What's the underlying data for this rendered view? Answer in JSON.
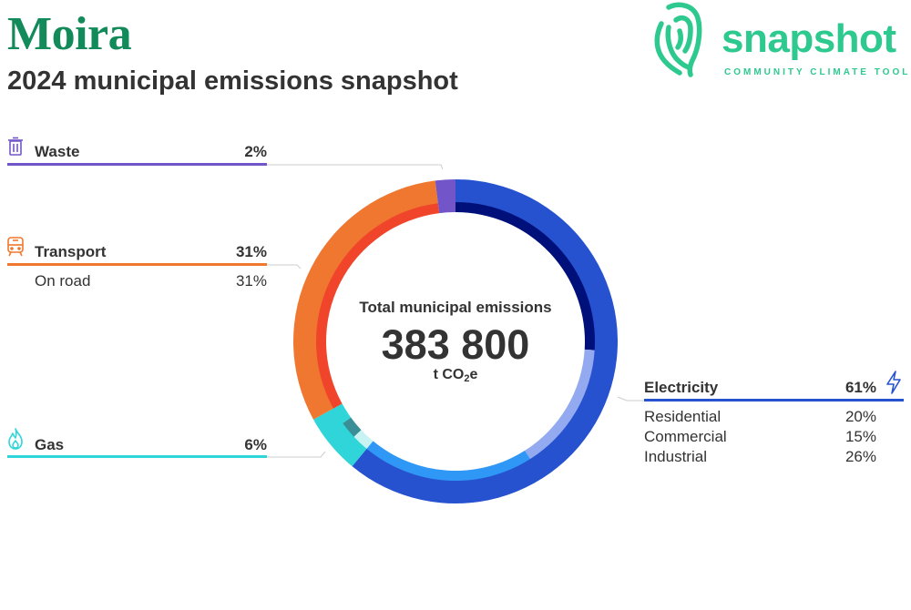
{
  "header": {
    "title": "Moira",
    "subtitle": "2024 municipal emissions snapshot"
  },
  "logo": {
    "word": "snapshot",
    "tagline": "COMMUNITY CLIMATE TOOL",
    "color": "#2dc98f"
  },
  "center": {
    "label": "Total municipal emissions",
    "value": "383 800",
    "unit_prefix": "t CO",
    "unit_subscript": "2",
    "unit_suffix": "e"
  },
  "colors": {
    "title": "#138a5a",
    "waste": "#7256c9",
    "transport": "#f0772f",
    "gas": "#2fd5d8",
    "electricity": "#2652d0"
  },
  "categories": {
    "waste": {
      "label": "Waste",
      "pct": "2%",
      "icon": "trash-can-icon"
    },
    "transport": {
      "label": "Transport",
      "pct": "31%",
      "icon": "train-icon",
      "subs": [
        {
          "label": "On road",
          "pct": "31%"
        }
      ]
    },
    "gas": {
      "label": "Gas",
      "pct": "6%",
      "icon": "flame-icon"
    },
    "electricity": {
      "label": "Electricity",
      "pct": "61%",
      "icon": "lightning-bolt-icon",
      "subs": [
        {
          "label": "Residential",
          "pct": "20%"
        },
        {
          "label": "Commercial",
          "pct": "15%"
        },
        {
          "label": "Industrial",
          "pct": "26%"
        }
      ]
    }
  },
  "chart_data": {
    "type": "pie",
    "style": "donut",
    "total": 383800,
    "unit": "t CO2e",
    "categories": [
      "Electricity",
      "Gas",
      "Transport",
      "Waste"
    ],
    "values": [
      61,
      6,
      31,
      2
    ],
    "colors": [
      "#2652d0",
      "#2fd5d8",
      "#f0772f",
      "#7256c9"
    ],
    "inner_ring": [
      {
        "category": "Electricity",
        "label": "Industrial",
        "value": 26,
        "color": "#00107a"
      },
      {
        "category": "Electricity",
        "label": "Commercial",
        "value": 15,
        "color": "#93aaf0"
      },
      {
        "category": "Electricity",
        "label": "Residential",
        "value": 20,
        "color": "#2f97f5"
      },
      {
        "category": "Gas",
        "label": "",
        "value": 2,
        "color": "#c9f3f3"
      },
      {
        "category": "Gas",
        "label": "",
        "value": 2,
        "color": "#3a8f97"
      },
      {
        "category": "Gas",
        "label": "",
        "value": 2,
        "color": "#2fd5d8"
      },
      {
        "category": "Transport",
        "label": "On road",
        "value": 31,
        "color": "#f0452b"
      },
      {
        "category": "Waste",
        "label": "",
        "value": 2,
        "color": "#7256c9"
      }
    ],
    "legend": "labels around the ring"
  }
}
